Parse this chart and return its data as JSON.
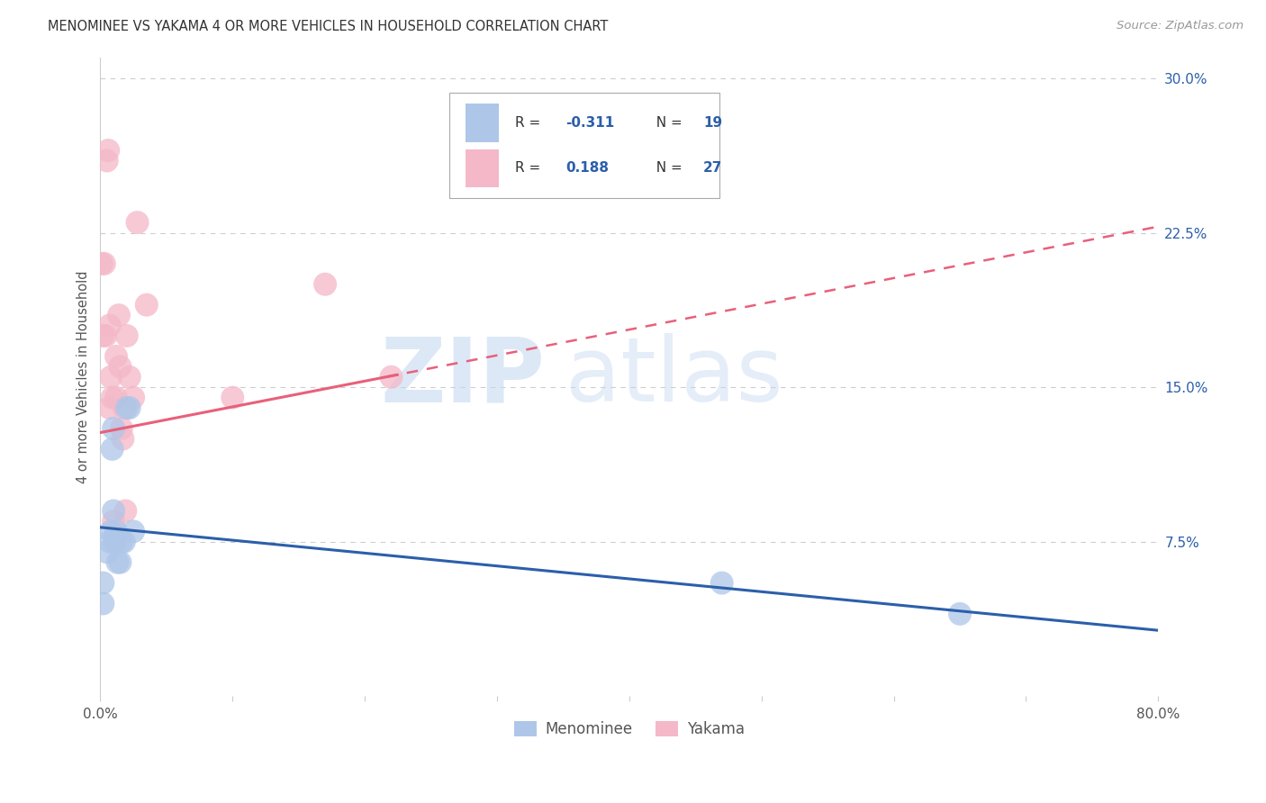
{
  "title": "MENOMINEE VS YAKAMA 4 OR MORE VEHICLES IN HOUSEHOLD CORRELATION CHART",
  "source": "Source: ZipAtlas.com",
  "ylabel_label": "4 or more Vehicles in Household",
  "xlim": [
    0.0,
    0.8
  ],
  "ylim": [
    0.0,
    0.31
  ],
  "menominee_color": "#aec6e8",
  "yakama_color": "#f4b8c8",
  "menominee_line_color": "#2b5faa",
  "yakama_line_color": "#e8607a",
  "R_menominee": -0.311,
  "N_menominee": 19,
  "R_yakama": 0.188,
  "N_yakama": 27,
  "menominee_x": [
    0.002,
    0.002,
    0.005,
    0.007,
    0.008,
    0.009,
    0.01,
    0.01,
    0.011,
    0.012,
    0.013,
    0.015,
    0.016,
    0.018,
    0.02,
    0.022,
    0.025,
    0.47,
    0.65
  ],
  "menominee_y": [
    0.055,
    0.045,
    0.07,
    0.075,
    0.08,
    0.12,
    0.13,
    0.09,
    0.075,
    0.08,
    0.065,
    0.065,
    0.075,
    0.075,
    0.14,
    0.14,
    0.08,
    0.055,
    0.04
  ],
  "yakama_x": [
    0.001,
    0.002,
    0.003,
    0.004,
    0.005,
    0.006,
    0.007,
    0.007,
    0.008,
    0.009,
    0.01,
    0.012,
    0.012,
    0.014,
    0.015,
    0.016,
    0.017,
    0.018,
    0.019,
    0.02,
    0.022,
    0.025,
    0.028,
    0.035,
    0.1,
    0.17,
    0.22
  ],
  "yakama_y": [
    0.21,
    0.175,
    0.21,
    0.175,
    0.26,
    0.265,
    0.18,
    0.14,
    0.155,
    0.145,
    0.085,
    0.165,
    0.145,
    0.185,
    0.16,
    0.13,
    0.125,
    0.14,
    0.09,
    0.175,
    0.155,
    0.145,
    0.23,
    0.19,
    0.145,
    0.2,
    0.155
  ],
  "watermark_zip": "ZIP",
  "watermark_atlas": "atlas",
  "background_color": "#ffffff",
  "grid_color": "#cccccc",
  "ytick_values": [
    0.075,
    0.15,
    0.225,
    0.3
  ],
  "ytick_labels": [
    "7.5%",
    "15.0%",
    "22.5%",
    "30.0%"
  ],
  "xtick_positions": [
    0.0,
    0.1,
    0.2,
    0.3,
    0.4,
    0.5,
    0.6,
    0.7,
    0.8
  ],
  "xtick_labels_show": [
    "0.0%",
    "",
    "",
    "",
    "",
    "",
    "",
    "",
    "80.0%"
  ]
}
